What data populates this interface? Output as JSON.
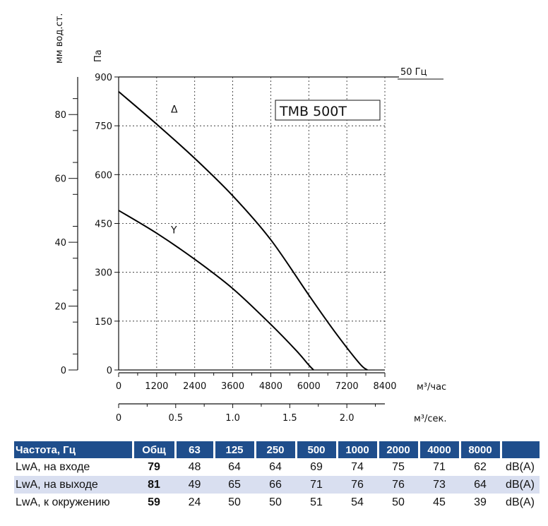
{
  "chart_data": {
    "type": "line",
    "model": "TMB 500T",
    "frequency_label": "50 Гц",
    "y_axis_left": {
      "label": "мм вод.ст.",
      "ticks": [
        0,
        20,
        40,
        60,
        80
      ]
    },
    "y_axis_right": {
      "label": "Па",
      "ticks": [
        0,
        150,
        300,
        450,
        600,
        750,
        900
      ]
    },
    "x_axis_flow": {
      "label": "м³/час",
      "ticks": [
        0,
        1200,
        2400,
        3600,
        4800,
        6000,
        7200,
        8400
      ]
    },
    "x_axis_flow_sec": {
      "label": "м³/сек.",
      "ticks": [
        "0",
        "0.5",
        "1.0",
        "1.5",
        "2.0"
      ]
    },
    "xlim": [
      0,
      8400
    ],
    "ylim": [
      0,
      900
    ],
    "grid": true,
    "series": [
      {
        "name": "Δ",
        "x": [
          0,
          1200,
          2400,
          3600,
          4800,
          6000,
          6800,
          7600,
          7850
        ],
        "y": [
          855,
          755,
          650,
          535,
          400,
          230,
          120,
          20,
          0
        ]
      },
      {
        "name": "Y",
        "x": [
          0,
          1200,
          2400,
          3600,
          4800,
          5600,
          6000,
          6150
        ],
        "y": [
          490,
          420,
          340,
          250,
          140,
          60,
          15,
          0
        ]
      }
    ]
  },
  "table": {
    "headers": [
      "Частота, Гц",
      "Общ",
      "63",
      "125",
      "250",
      "500",
      "1000",
      "2000",
      "4000",
      "8000",
      ""
    ],
    "rows": [
      {
        "label": "LwA, на входе",
        "total": "79",
        "values": [
          "48",
          "64",
          "64",
          "69",
          "74",
          "75",
          "71",
          "62"
        ],
        "unit": "dB(A)"
      },
      {
        "label": "LwA, на выходе",
        "total": "81",
        "values": [
          "49",
          "65",
          "66",
          "71",
          "76",
          "76",
          "73",
          "64"
        ],
        "unit": "dB(A)"
      },
      {
        "label": "LwA, к окружению",
        "total": "59",
        "values": [
          "24",
          "50",
          "50",
          "51",
          "54",
          "50",
          "45",
          "39"
        ],
        "unit": "dB(A)"
      }
    ]
  },
  "colors": {
    "header_bg": "#1f4e8c",
    "row_shade": "#d9dff0",
    "grid": "#222222"
  }
}
